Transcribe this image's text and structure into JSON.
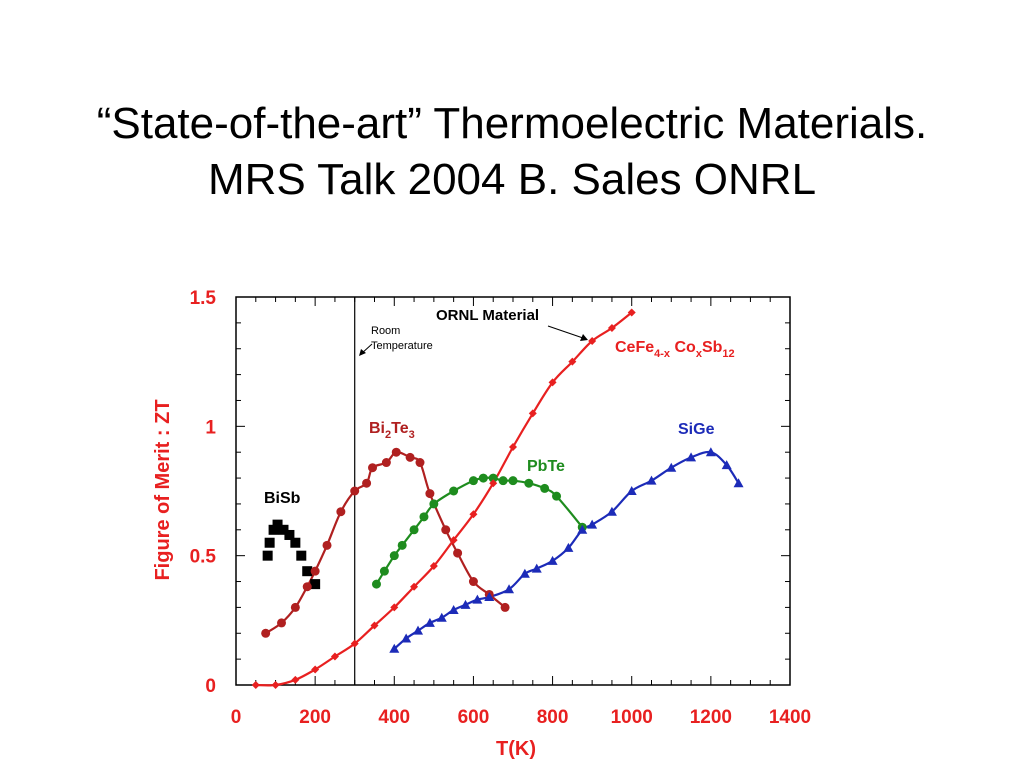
{
  "title": {
    "line1": "“State-of-the-art” Thermoelectric Materials.",
    "line2": "MRS Talk 2004 B. Sales ONRL"
  },
  "chart_data": {
    "type": "scatter",
    "xlabel": "T(K)",
    "ylabel": "Figure of Merit : ZT",
    "xlim": [
      0,
      1400
    ],
    "ylim": [
      0,
      1.5
    ],
    "x_ticks": [
      "0",
      "200",
      "400",
      "600",
      "800",
      "1000",
      "1200",
      "1400"
    ],
    "y_ticks": [
      "0",
      "0.5",
      "1",
      "1.5"
    ],
    "grid": false,
    "annotations": {
      "room_temperature_line_x": 300,
      "room_temperature_label": [
        "Room",
        "Temperature"
      ],
      "ornl_label": "ORNL Material"
    },
    "series": [
      {
        "name": "BiSb",
        "color": "#000000",
        "marker": "square",
        "curve": false,
        "x": [
          80,
          85,
          95,
          105,
          120,
          135,
          150,
          165,
          180,
          200
        ],
        "y": [
          0.5,
          0.55,
          0.6,
          0.62,
          0.6,
          0.58,
          0.55,
          0.5,
          0.44,
          0.39
        ]
      },
      {
        "name": "Bi2Te3",
        "label_main": [
          "Bi",
          "Te"
        ],
        "label_subs": [
          "2",
          "3"
        ],
        "color": "#b02020",
        "marker": "circle",
        "curve": true,
        "x": [
          75,
          115,
          150,
          180,
          200,
          230,
          265,
          300,
          330,
          345,
          380,
          405,
          440,
          465,
          490,
          530,
          560,
          600,
          640,
          680
        ],
        "y": [
          0.2,
          0.24,
          0.3,
          0.38,
          0.44,
          0.54,
          0.67,
          0.75,
          0.78,
          0.84,
          0.86,
          0.9,
          0.88,
          0.86,
          0.74,
          0.6,
          0.51,
          0.4,
          0.35,
          0.3
        ]
      },
      {
        "name": "PbTe",
        "color": "#1e8c1e",
        "marker": "circle",
        "curve": true,
        "x": [
          355,
          375,
          400,
          420,
          450,
          475,
          500,
          550,
          600,
          625,
          650,
          675,
          700,
          740,
          780,
          810,
          875
        ],
        "y": [
          0.39,
          0.44,
          0.5,
          0.54,
          0.6,
          0.65,
          0.7,
          0.75,
          0.79,
          0.8,
          0.8,
          0.79,
          0.79,
          0.78,
          0.76,
          0.73,
          0.61
        ]
      },
      {
        "name": "CeFe4-x CoxSb12",
        "label_parts": [
          {
            "t": "CeFe",
            "sub": false
          },
          {
            "t": "4-x",
            "sub": true
          },
          {
            "t": " Co",
            "sub": false
          },
          {
            "t": "x",
            "sub": true
          },
          {
            "t": "Sb",
            "sub": false
          },
          {
            "t": "12",
            "sub": true
          }
        ],
        "color": "#e82020",
        "marker": "diamond",
        "curve": true,
        "x": [
          50,
          100,
          150,
          200,
          250,
          300,
          350,
          400,
          450,
          500,
          550,
          600,
          650,
          700,
          750,
          800,
          850,
          900,
          950,
          1000
        ],
        "y": [
          0.0,
          0.0,
          0.02,
          0.06,
          0.11,
          0.16,
          0.23,
          0.3,
          0.38,
          0.46,
          0.56,
          0.66,
          0.78,
          0.92,
          1.05,
          1.17,
          1.25,
          1.33,
          1.38,
          1.44
        ]
      },
      {
        "name": "SiGe",
        "color": "#1c2bb8",
        "marker": "triangle",
        "curve": true,
        "x": [
          400,
          430,
          460,
          490,
          520,
          550,
          580,
          610,
          640,
          690,
          730,
          760,
          800,
          840,
          875,
          900,
          950,
          1000,
          1050,
          1100,
          1150,
          1200,
          1240,
          1270
        ],
        "y": [
          0.14,
          0.18,
          0.21,
          0.24,
          0.26,
          0.29,
          0.31,
          0.33,
          0.34,
          0.37,
          0.43,
          0.45,
          0.48,
          0.53,
          0.6,
          0.62,
          0.67,
          0.75,
          0.79,
          0.84,
          0.88,
          0.9,
          0.85,
          0.78
        ]
      }
    ]
  }
}
